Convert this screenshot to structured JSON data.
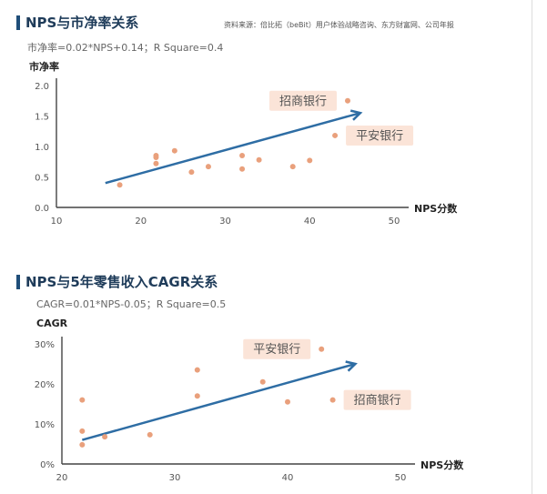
{
  "source": "资料来源：倍比拓（beBit）用户体验战略咨询、东方财富网、公司年报",
  "chart_data": [
    {
      "type": "scatter",
      "title": "NPS与市净率关系",
      "subtitle": "市净率=0.02*NPS+0.14；R Square=0.4",
      "ylabel": "市净率",
      "xlabel": "NPS分数",
      "xlim": [
        10,
        50
      ],
      "ylim": [
        0,
        2
      ],
      "xticks": [
        "10",
        "20",
        "30",
        "40",
        "50"
      ],
      "yticks": [
        "0.0",
        "0.5",
        "1.0",
        "1.5",
        "2.0"
      ],
      "points": [
        {
          "x": 17.5,
          "y": 0.37
        },
        {
          "x": 21.8,
          "y": 0.72
        },
        {
          "x": 21.8,
          "y": 0.82
        },
        {
          "x": 21.8,
          "y": 0.85
        },
        {
          "x": 24,
          "y": 0.93
        },
        {
          "x": 26,
          "y": 0.58
        },
        {
          "x": 28,
          "y": 0.67
        },
        {
          "x": 32,
          "y": 0.63
        },
        {
          "x": 32,
          "y": 0.85
        },
        {
          "x": 34,
          "y": 0.78
        },
        {
          "x": 38,
          "y": 0.67
        },
        {
          "x": 40,
          "y": 0.77
        },
        {
          "x": 43,
          "y": 1.18
        },
        {
          "x": 44.5,
          "y": 1.75
        }
      ],
      "trend": {
        "x1": 15.8,
        "y1": 0.4,
        "x2": 46,
        "y2": 1.55
      },
      "annotations": [
        {
          "text": "招商银行",
          "x": 44.5,
          "y": 1.75,
          "side": "left"
        },
        {
          "text": "平安银行",
          "x": 43,
          "y": 1.18,
          "side": "right"
        }
      ]
    },
    {
      "type": "scatter",
      "title": "NPS与5年零售收入CAGR关系",
      "subtitle": "CAGR=0.01*NPS-0.05；R Square=0.5",
      "ylabel": "CAGR",
      "xlabel": "NPS分数",
      "xlim": [
        20,
        50
      ],
      "ylim": [
        0,
        30
      ],
      "xticks": [
        "20",
        "30",
        "40",
        "50"
      ],
      "yticks": [
        "0%",
        "10%",
        "20%",
        "30%"
      ],
      "points": [
        {
          "x": 21.8,
          "y": 4.8
        },
        {
          "x": 21.8,
          "y": 8.2
        },
        {
          "x": 21.8,
          "y": 16
        },
        {
          "x": 23.8,
          "y": 6.8
        },
        {
          "x": 27.8,
          "y": 7.3
        },
        {
          "x": 32,
          "y": 17
        },
        {
          "x": 32,
          "y": 23.5
        },
        {
          "x": 37.8,
          "y": 20.5
        },
        {
          "x": 40,
          "y": 15.5
        },
        {
          "x": 43,
          "y": 28.7
        },
        {
          "x": 44,
          "y": 16
        }
      ],
      "trend": {
        "x1": 21.8,
        "y1": 6,
        "x2": 46,
        "y2": 25
      },
      "annotations": [
        {
          "text": "平安银行",
          "x": 43,
          "y": 28.7,
          "side": "left"
        },
        {
          "text": "招商银行",
          "x": 44,
          "y": 16,
          "side": "right"
        }
      ]
    }
  ],
  "colors": {
    "point": "#e9a07c",
    "trend": "#2e6da4",
    "label_bg": "#fbe4d8",
    "label_text": "#555555",
    "title": "#1f3c5a",
    "axis": "#444444"
  }
}
